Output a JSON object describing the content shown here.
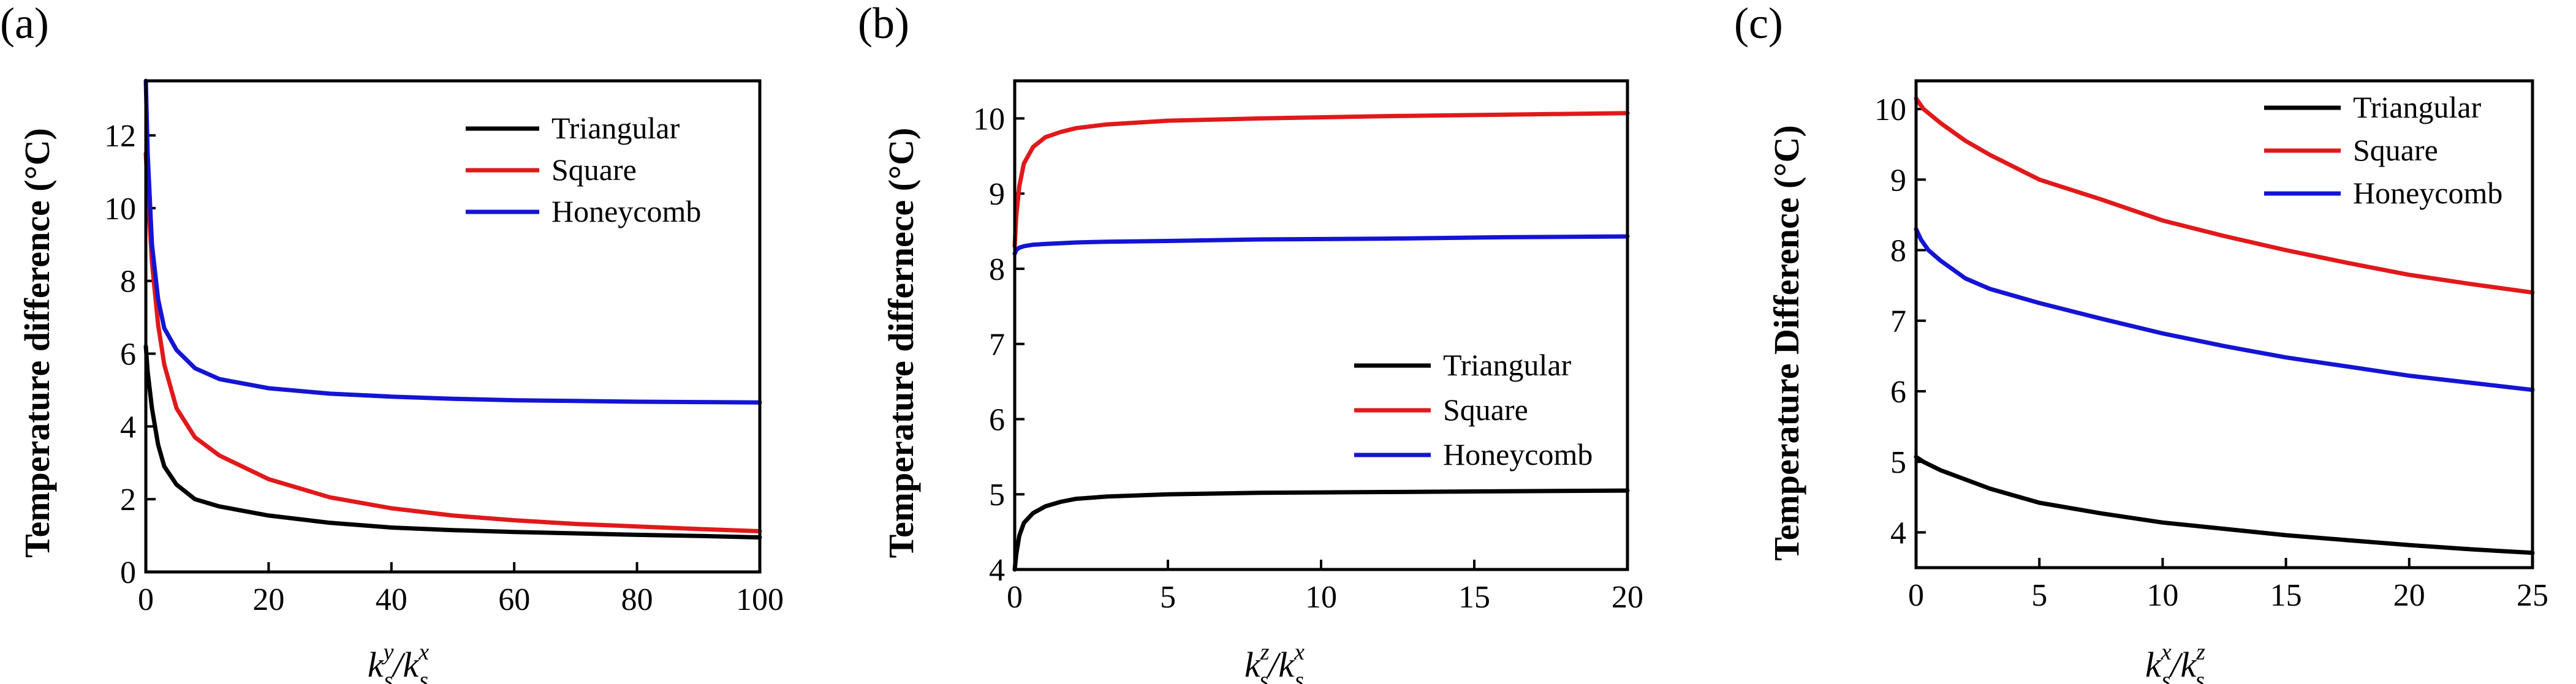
{
  "chart_data": [
    {
      "panel": "(a)",
      "type": "line",
      "xlabel": "k^y_s/k^x_s",
      "xlabel_parts": {
        "k1": "k",
        "sup1": "y",
        "sub1": "s",
        "sep": "/",
        "k2": "k",
        "sup2": "x",
        "sub2": "s"
      },
      "ylabel": "Temperature difference (°C)",
      "xlim": [
        0,
        100
      ],
      "ylim": [
        0,
        13.5
      ],
      "xticks": [
        0,
        20,
        40,
        60,
        80,
        100
      ],
      "yticks": [
        0,
        2,
        4,
        6,
        8,
        10,
        12
      ],
      "legend_position": "top-right",
      "series": [
        {
          "name": "Triangular",
          "color": "#000000",
          "x": [
            0,
            0.3,
            1,
            2,
            3,
            5,
            8,
            12,
            20,
            30,
            40,
            50,
            60,
            70,
            80,
            90,
            100
          ],
          "y": [
            6.2,
            5.5,
            4.5,
            3.5,
            2.9,
            2.4,
            2.0,
            1.8,
            1.55,
            1.35,
            1.22,
            1.15,
            1.1,
            1.06,
            1.02,
            0.99,
            0.95
          ]
        },
        {
          "name": "Square",
          "color": "#e0191b",
          "x": [
            0,
            0.3,
            1,
            2,
            3,
            5,
            8,
            12,
            20,
            30,
            40,
            50,
            60,
            70,
            80,
            90,
            100
          ],
          "y": [
            11.5,
            10.5,
            8.5,
            6.8,
            5.7,
            4.5,
            3.7,
            3.2,
            2.55,
            2.05,
            1.75,
            1.55,
            1.42,
            1.32,
            1.25,
            1.18,
            1.12
          ]
        },
        {
          "name": "Honeycomb",
          "color": "#1414d4",
          "x": [
            0,
            0.3,
            1,
            2,
            3,
            5,
            8,
            12,
            20,
            30,
            40,
            50,
            60,
            70,
            80,
            90,
            100
          ],
          "y": [
            13.5,
            11.5,
            9.0,
            7.5,
            6.7,
            6.1,
            5.6,
            5.3,
            5.05,
            4.9,
            4.82,
            4.76,
            4.72,
            4.7,
            4.68,
            4.67,
            4.66
          ]
        }
      ]
    },
    {
      "panel": "(b)",
      "type": "line",
      "xlabel": "k^z_s/k^x_s",
      "xlabel_parts": {
        "k1": "k",
        "sup1": "z",
        "sub1": "s",
        "sep": "/",
        "k2": "k",
        "sup2": "x",
        "sub2": "s"
      },
      "ylabel": "Temperature differnece (°C)",
      "xlim": [
        0,
        20
      ],
      "ylim": [
        4,
        10.5
      ],
      "xticks": [
        0,
        5,
        10,
        15,
        20
      ],
      "yticks": [
        4,
        5,
        6,
        7,
        8,
        9,
        10
      ],
      "legend_position": "center-right",
      "series": [
        {
          "name": "Triangular",
          "color": "#000000",
          "x": [
            0,
            0.05,
            0.15,
            0.3,
            0.6,
            1,
            1.5,
            2,
            3,
            5,
            8,
            12,
            16,
            20
          ],
          "y": [
            4.0,
            4.2,
            4.45,
            4.62,
            4.75,
            4.84,
            4.9,
            4.94,
            4.97,
            5.0,
            5.02,
            5.03,
            5.04,
            5.05
          ]
        },
        {
          "name": "Square",
          "color": "#e0191b",
          "x": [
            0,
            0.05,
            0.15,
            0.3,
            0.6,
            1,
            1.5,
            2,
            3,
            5,
            8,
            12,
            16,
            20
          ],
          "y": [
            8.3,
            8.7,
            9.1,
            9.4,
            9.62,
            9.75,
            9.82,
            9.87,
            9.92,
            9.97,
            10.0,
            10.03,
            10.05,
            10.07
          ]
        },
        {
          "name": "Honeycomb",
          "color": "#1414d4",
          "x": [
            0,
            0.05,
            0.15,
            0.3,
            0.6,
            1,
            2,
            3,
            5,
            8,
            12,
            16,
            20
          ],
          "y": [
            8.2,
            8.25,
            8.28,
            8.3,
            8.32,
            8.33,
            8.35,
            8.36,
            8.37,
            8.39,
            8.4,
            8.42,
            8.43
          ]
        }
      ]
    },
    {
      "panel": "(c)",
      "type": "line",
      "xlabel": "k^x_s/k^z_s",
      "xlabel_parts": {
        "k1": "k",
        "sup1": "x",
        "sub1": "s",
        "sep": "/",
        "k2": "k",
        "sup2": "z",
        "sub2": "s"
      },
      "ylabel": "Temperature Difference (°C)",
      "xlim": [
        0,
        25
      ],
      "ylim": [
        3.5,
        10.4
      ],
      "xticks": [
        0,
        5,
        10,
        15,
        20,
        25
      ],
      "yticks": [
        4,
        5,
        6,
        7,
        8,
        9,
        10
      ],
      "legend_position": "top-right",
      "series": [
        {
          "name": "Triangular",
          "color": "#000000",
          "x": [
            0,
            0.3,
            1,
            2,
            3,
            5,
            7.5,
            10,
            12.5,
            15,
            17.5,
            20,
            22.5,
            25
          ],
          "y": [
            5.07,
            5.0,
            4.88,
            4.75,
            4.62,
            4.42,
            4.27,
            4.14,
            4.05,
            3.96,
            3.89,
            3.82,
            3.76,
            3.71
          ]
        },
        {
          "name": "Square",
          "color": "#e0191b",
          "x": [
            0,
            0.3,
            1,
            2,
            3,
            5,
            7.5,
            10,
            12.5,
            15,
            17.5,
            20,
            22.5,
            25
          ],
          "y": [
            10.15,
            10.0,
            9.8,
            9.55,
            9.35,
            9.0,
            8.72,
            8.42,
            8.2,
            8.0,
            7.82,
            7.65,
            7.52,
            7.4
          ]
        },
        {
          "name": "Honeycomb",
          "color": "#1414d4",
          "x": [
            0,
            0.2,
            0.5,
            1,
            2,
            3,
            5,
            7.5,
            10,
            12.5,
            15,
            17.5,
            20,
            22.5,
            25
          ],
          "y": [
            8.3,
            8.15,
            8.0,
            7.85,
            7.6,
            7.45,
            7.25,
            7.03,
            6.82,
            6.64,
            6.48,
            6.35,
            6.22,
            6.12,
            6.02
          ]
        }
      ]
    }
  ]
}
